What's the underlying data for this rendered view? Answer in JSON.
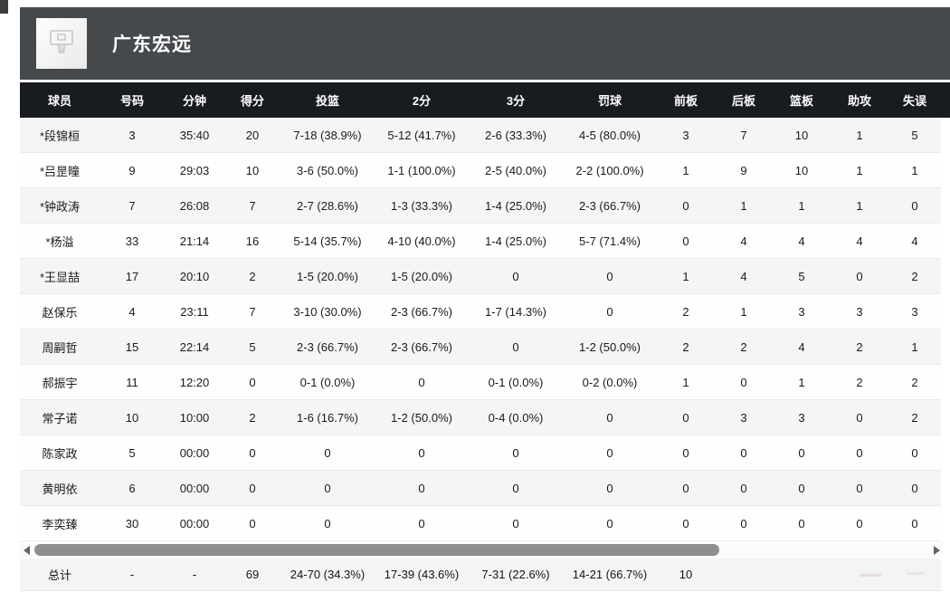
{
  "team_header": {
    "title": "广东宏远",
    "logo_icon": "basketball-hoop-logo"
  },
  "colors": {
    "band_bg": "#46494c",
    "column_header_bg": "#181b20",
    "stripe_row_bg": "#f4f5f6",
    "white_row_bg": "#fefefe",
    "total_row_bg": "#f2f4f6",
    "scroll_thumb": "#8f8f8f"
  },
  "table": {
    "columns": [
      "球员",
      "号码",
      "分钟",
      "得分",
      "投篮",
      "2分",
      "3分",
      "罚球",
      "前板",
      "后板",
      "篮板",
      "助攻",
      "失误"
    ],
    "rows": [
      [
        "*段锦桓",
        "3",
        "35:40",
        "20",
        "7-18 (38.9%)",
        "5-12 (41.7%)",
        "2-6 (33.3%)",
        "4-5 (80.0%)",
        "3",
        "7",
        "10",
        "1",
        "5"
      ],
      [
        "*吕昰曈",
        "9",
        "29:03",
        "10",
        "3-6 (50.0%)",
        "1-1 (100.0%)",
        "2-5 (40.0%)",
        "2-2 (100.0%)",
        "1",
        "9",
        "10",
        "1",
        "1"
      ],
      [
        "*钟政涛",
        "7",
        "26:08",
        "7",
        "2-7 (28.6%)",
        "1-3 (33.3%)",
        "1-4 (25.0%)",
        "2-3 (66.7%)",
        "0",
        "1",
        "1",
        "1",
        "0"
      ],
      [
        "*杨溢",
        "33",
        "21:14",
        "16",
        "5-14 (35.7%)",
        "4-10 (40.0%)",
        "1-4 (25.0%)",
        "5-7 (71.4%)",
        "0",
        "4",
        "4",
        "4",
        "4"
      ],
      [
        "*王显喆",
        "17",
        "20:10",
        "2",
        "1-5 (20.0%)",
        "1-5 (20.0%)",
        "0",
        "0",
        "1",
        "4",
        "5",
        "0",
        "2"
      ],
      [
        "赵保乐",
        "4",
        "23:11",
        "7",
        "3-10 (30.0%)",
        "2-3 (66.7%)",
        "1-7 (14.3%)",
        "0",
        "2",
        "1",
        "3",
        "3",
        "3"
      ],
      [
        "周嗣哲",
        "15",
        "22:14",
        "5",
        "2-3 (66.7%)",
        "2-3 (66.7%)",
        "0",
        "1-2 (50.0%)",
        "2",
        "2",
        "4",
        "2",
        "1"
      ],
      [
        "郝振宇",
        "11",
        "12:20",
        "0",
        "0-1 (0.0%)",
        "0",
        "0-1 (0.0%)",
        "0-2 (0.0%)",
        "1",
        "0",
        "1",
        "2",
        "2"
      ],
      [
        "常子诺",
        "10",
        "10:00",
        "2",
        "1-6 (16.7%)",
        "1-2 (50.0%)",
        "0-4 (0.0%)",
        "0",
        "0",
        "3",
        "3",
        "0",
        "2"
      ],
      [
        "陈家政",
        "5",
        "00:00",
        "0",
        "0",
        "0",
        "0",
        "0",
        "0",
        "0",
        "0",
        "0",
        "0"
      ],
      [
        "黄明依",
        "6",
        "00:00",
        "0",
        "0",
        "0",
        "0",
        "0",
        "0",
        "0",
        "0",
        "0",
        "0"
      ],
      [
        "李奕臻",
        "30",
        "00:00",
        "0",
        "0",
        "0",
        "0",
        "0",
        "0",
        "0",
        "0",
        "0",
        "0"
      ]
    ],
    "total": [
      "总计",
      "-",
      "-",
      "69",
      "24-70 (34.3%)",
      "17-39 (43.6%)",
      "7-31 (22.6%)",
      "14-21 (66.7%)",
      "10",
      "",
      "",
      "",
      ""
    ]
  },
  "scrollbar": {
    "left_arrow": "left",
    "right_arrow": "right"
  }
}
